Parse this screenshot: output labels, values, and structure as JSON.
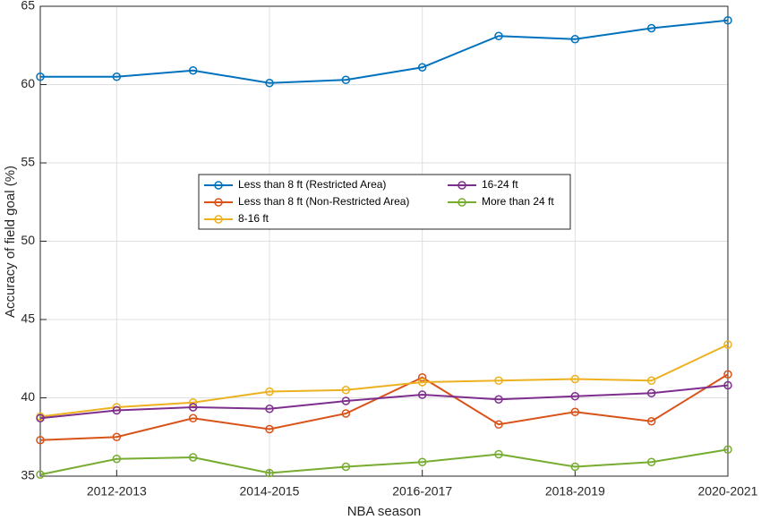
{
  "chart_data": {
    "type": "line",
    "xlabel": "NBA season",
    "ylabel": "Accuracy of field goal (%)",
    "categories": [
      null,
      "2012-2013",
      null,
      "2014-2015",
      null,
      "2016-2017",
      null,
      "2018-2019",
      null,
      "2020-2021"
    ],
    "series": [
      {
        "name": "Less than 8 ft (Restricted Area)",
        "color": "#0072bd",
        "values": [
          60.5,
          60.5,
          60.9,
          60.1,
          60.3,
          61.1,
          63.1,
          62.9,
          63.6,
          64.1
        ]
      },
      {
        "name": "Less than 8 ft (Non-Restricted Area)",
        "color": "#d95319",
        "values": [
          37.3,
          37.5,
          38.7,
          38.0,
          39.0,
          41.3,
          38.3,
          39.1,
          38.5,
          41.5
        ]
      },
      {
        "name": "8-16 ft",
        "color": "#edb120",
        "values": [
          38.8,
          39.4,
          39.7,
          40.4,
          40.5,
          41.0,
          41.1,
          41.2,
          41.1,
          43.4
        ]
      },
      {
        "name": "16-24 ft",
        "color": "#7e2f8e",
        "values": [
          38.7,
          39.2,
          39.4,
          39.3,
          39.8,
          40.2,
          39.9,
          40.1,
          40.3,
          40.8
        ]
      },
      {
        "name": "More than 24 ft",
        "color": "#77ac30",
        "values": [
          35.1,
          36.1,
          36.2,
          35.2,
          35.6,
          35.9,
          36.4,
          35.6,
          35.9,
          36.7
        ]
      }
    ],
    "ylim": [
      35,
      65
    ],
    "yticks": [
      35,
      40,
      45,
      50,
      55,
      60,
      65
    ],
    "grid": true,
    "legend": "center"
  }
}
